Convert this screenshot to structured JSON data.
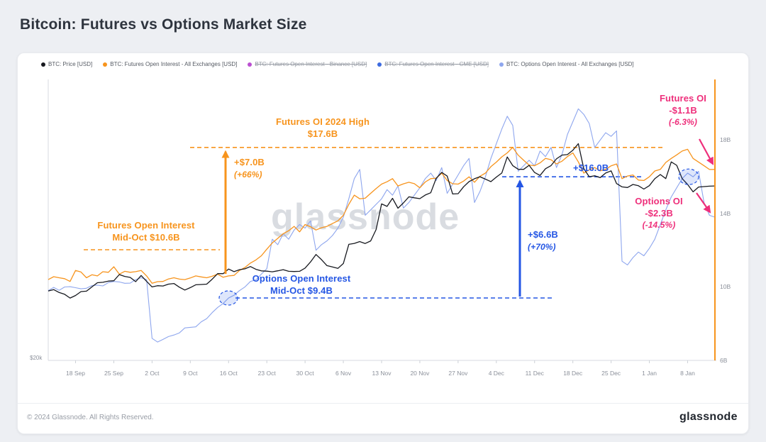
{
  "page": {
    "title": "Bitcoin: Futures vs Options Market Size",
    "watermark": "glassnode",
    "footer": {
      "copyright": "© 2024 Glassnode. All Rights Reserved.",
      "brand": "glassnode"
    }
  },
  "legend": [
    {
      "label": "BTC: Price [USD]",
      "color": "#17191f",
      "disabled": false
    },
    {
      "label": "BTC: Futures Open Interest - All Exchanges [USD]",
      "color": "#f7941d",
      "disabled": false
    },
    {
      "label": "BTC: Futures Open Interest - Binance [USD]",
      "color": "#bb4fd1",
      "disabled": true
    },
    {
      "label": "BTC: Futures Open Interest - CME [USD]",
      "color": "#3d6be0",
      "disabled": true
    },
    {
      "label": "BTC: Options Open Interest - All Exchanges [USD]",
      "color": "#8ea6ee",
      "disabled": false
    }
  ],
  "chart_data": {
    "type": "line",
    "title": "Bitcoin: Futures vs Options Market Size",
    "x_range": [
      0,
      122
    ],
    "x_ticks": [
      {
        "day": 5,
        "label": "18 Sep"
      },
      {
        "day": 12,
        "label": "25 Sep"
      },
      {
        "day": 19,
        "label": "2 Oct"
      },
      {
        "day": 26,
        "label": "9 Oct"
      },
      {
        "day": 33,
        "label": "16 Oct"
      },
      {
        "day": 40,
        "label": "23 Oct"
      },
      {
        "day": 47,
        "label": "30 Oct"
      },
      {
        "day": 54,
        "label": "6 Nov"
      },
      {
        "day": 61,
        "label": "13 Nov"
      },
      {
        "day": 68,
        "label": "20 Nov"
      },
      {
        "day": 75,
        "label": "27 Nov"
      },
      {
        "day": 82,
        "label": "4 Dec"
      },
      {
        "day": 89,
        "label": "11 Dec"
      },
      {
        "day": 96,
        "label": "18 Dec"
      },
      {
        "day": 103,
        "label": "25 Dec"
      },
      {
        "day": 110,
        "label": "1 Jan"
      },
      {
        "day": 117,
        "label": "8 Jan"
      }
    ],
    "left_axis": {
      "label_bottom": "$20k",
      "render_min_k": 38,
      "render_max_k": 129
    },
    "right_axis": {
      "ticks": [
        "18B",
        "14B",
        "10B",
        "6B"
      ],
      "tick_values": [
        18,
        14,
        10,
        6
      ],
      "render_min": 6,
      "render_max": 21.3
    },
    "series": [
      {
        "key": "price",
        "name": "BTC: Price [USD]",
        "axis": "price",
        "unit": "k USD",
        "color": "#17191f",
        "x": [
          0,
          2,
          4,
          6,
          8,
          10,
          12,
          13,
          14,
          16,
          17,
          18,
          19,
          21,
          23,
          25,
          27,
          29,
          31,
          33,
          35,
          37,
          39,
          41,
          43,
          45,
          47,
          48,
          49,
          51,
          53,
          54,
          55,
          56,
          57,
          59,
          60,
          61,
          62,
          63,
          64,
          66,
          68,
          70,
          71,
          72,
          73,
          74,
          75,
          77,
          79,
          81,
          83,
          84,
          85,
          86,
          88,
          90,
          92,
          94,
          96,
          97,
          98,
          99,
          100,
          101,
          102,
          103,
          104,
          105,
          107,
          109,
          110,
          112,
          113,
          114,
          115,
          116,
          117,
          118,
          120,
          122
        ],
        "v": [
          60.5,
          60.0,
          58.2,
          60.3,
          61.8,
          63.3,
          63.8,
          65.8,
          65.2,
          63.5,
          65.5,
          63.6,
          61.8,
          62.1,
          62.9,
          60.8,
          62.5,
          62.7,
          66.1,
          67.6,
          67.4,
          68.4,
          67.0,
          66.7,
          67.4,
          66.8,
          67.9,
          69.9,
          72.3,
          68.7,
          67.8,
          69.4,
          75.6,
          75.9,
          76.5,
          76.7,
          80.4,
          88.7,
          87.9,
          90.5,
          87.3,
          91.0,
          90.4,
          92.3,
          97.0,
          98.9,
          97.7,
          91.9,
          92.0,
          95.9,
          97.5,
          95.9,
          98.7,
          103.9,
          101.1,
          99.9,
          101.2,
          97.9,
          101.1,
          104.5,
          106.1,
          108.2,
          100.1,
          97.5,
          97.8,
          97.2,
          98.7,
          99.4,
          95.3,
          94.2,
          95.0,
          93.5,
          94.6,
          98.2,
          96.9,
          102.3,
          101.2,
          96.9,
          95.0,
          92.6,
          94.3,
          94.5
        ]
      },
      {
        "key": "futures",
        "name": "BTC: Futures Open Interest - All Exchanges [USD]",
        "axis": "oi",
        "unit": "B USD",
        "color": "#f7941d",
        "x": [
          0,
          2,
          4,
          5,
          7,
          9,
          11,
          12,
          13,
          15,
          17,
          18,
          19,
          21,
          23,
          25,
          27,
          29,
          31,
          33,
          35,
          37,
          39,
          41,
          43,
          45,
          46,
          47,
          49,
          51,
          53,
          54,
          55,
          56,
          57,
          59,
          61,
          63,
          64,
          66,
          68,
          70,
          72,
          73,
          75,
          77,
          78,
          80,
          82,
          84,
          85,
          87,
          89,
          91,
          93,
          95,
          96,
          98,
          100,
          102,
          104,
          105,
          107,
          109,
          110,
          112,
          114,
          116,
          117,
          118,
          120,
          122
        ],
        "v": [
          10.4,
          10.5,
          10.3,
          10.9,
          10.5,
          10.6,
          10.8,
          11.1,
          10.7,
          10.8,
          10.9,
          10.6,
          10.2,
          10.3,
          10.5,
          10.4,
          10.6,
          10.5,
          10.7,
          10.6,
          10.9,
          11.3,
          11.7,
          12.4,
          12.9,
          13.3,
          13.0,
          13.4,
          13.1,
          13.3,
          13.6,
          13.9,
          14.5,
          15.0,
          14.8,
          15.1,
          15.6,
          15.9,
          15.5,
          15.7,
          15.4,
          15.9,
          16.2,
          15.8,
          15.6,
          16.0,
          15.7,
          16.2,
          16.8,
          17.3,
          17.6,
          16.9,
          16.6,
          17.0,
          16.7,
          17.1,
          17.3,
          16.2,
          16.5,
          16.4,
          16.7,
          15.9,
          16.1,
          15.8,
          16.0,
          16.4,
          17.0,
          17.4,
          17.5,
          17.0,
          16.6,
          16.4
        ]
      },
      {
        "key": "options",
        "name": "BTC: Options Open Interest - All Exchanges [USD]",
        "axis": "oi",
        "unit": "B USD",
        "color": "#8ea6ee",
        "x": [
          0,
          3,
          6,
          9,
          12,
          14,
          16,
          17,
          18,
          19,
          20,
          22,
          24,
          26,
          28,
          30,
          32,
          33,
          35,
          37,
          39,
          40,
          41,
          42,
          43,
          44,
          45,
          46,
          47,
          48,
          49,
          50,
          52,
          53,
          54,
          55,
          56,
          57,
          58,
          59,
          60,
          61,
          62,
          63,
          64,
          65,
          66,
          67,
          68,
          69,
          70,
          71,
          72,
          73,
          74,
          75,
          76,
          77,
          78,
          79,
          80,
          81,
          82,
          83,
          84,
          85,
          86,
          87,
          88,
          89,
          90,
          91,
          92,
          93,
          94,
          95,
          96,
          97,
          98,
          99,
          100,
          101,
          102,
          103,
          104,
          105,
          106,
          107,
          108,
          109,
          110,
          111,
          112,
          113,
          114,
          115,
          116,
          117,
          118,
          119,
          120,
          121,
          122
        ],
        "v": [
          9.8,
          10.0,
          9.9,
          10.1,
          10.3,
          10.2,
          10.4,
          10.5,
          10.4,
          7.2,
          7.0,
          7.3,
          7.5,
          7.8,
          8.1,
          8.6,
          9.1,
          9.4,
          9.8,
          10.3,
          10.7,
          11.0,
          12.6,
          12.3,
          12.9,
          12.6,
          13.1,
          13.4,
          13.2,
          13.6,
          12.0,
          12.3,
          12.8,
          13.2,
          13.8,
          14.8,
          15.9,
          16.4,
          13.9,
          14.2,
          14.5,
          14.8,
          15.3,
          15.0,
          15.5,
          14.3,
          14.6,
          15.0,
          15.4,
          15.9,
          16.2,
          15.8,
          16.5,
          15.1,
          15.6,
          16.1,
          16.6,
          17.0,
          14.6,
          15.2,
          16.0,
          17.0,
          17.8,
          18.6,
          19.3,
          18.8,
          16.3,
          16.6,
          16.9,
          16.6,
          17.4,
          17.1,
          17.6,
          16.5,
          17.2,
          18.3,
          19.0,
          19.7,
          19.4,
          18.9,
          17.6,
          18.0,
          18.4,
          18.2,
          18.5,
          11.4,
          11.2,
          11.6,
          11.9,
          11.7,
          12.1,
          12.6,
          13.4,
          14.2,
          14.9,
          15.4,
          15.9,
          16.2,
          16.0,
          16.3,
          14.6,
          13.9,
          13.8
        ]
      }
    ],
    "annotations": {
      "futures_high": {
        "line1": "Futures OI 2024 High",
        "line2": "$17.6B",
        "value": 17.6
      },
      "futures_gain": {
        "line1": "+$7.0B",
        "line2": "(+66%)"
      },
      "futures_midoct": {
        "line1": "Futures Open Interest",
        "line2": "Mid-Oct $10.6B",
        "value": 10.6
      },
      "options_midoct": {
        "line1": "Options Open Interest",
        "line2": "Mid-Oct $9.4B",
        "value": 9.4
      },
      "options_gain": {
        "line1": "+$6.6B",
        "line2": "(+70%)"
      },
      "options_level": {
        "label": "+$16.0B",
        "value": 16.0
      },
      "futures_drop": {
        "line1": "Futures OI",
        "line2": "-$1.1B",
        "line3": "(-6.3%)"
      },
      "options_drop": {
        "line1": "Options OI",
        "line2": "-$2.3B",
        "line3": "(-14.5%)"
      },
      "colors": {
        "orange": "#f7941d",
        "blue": "#2456e4",
        "pink": "#ee2f7b",
        "axis": "#d7dae0"
      }
    }
  }
}
